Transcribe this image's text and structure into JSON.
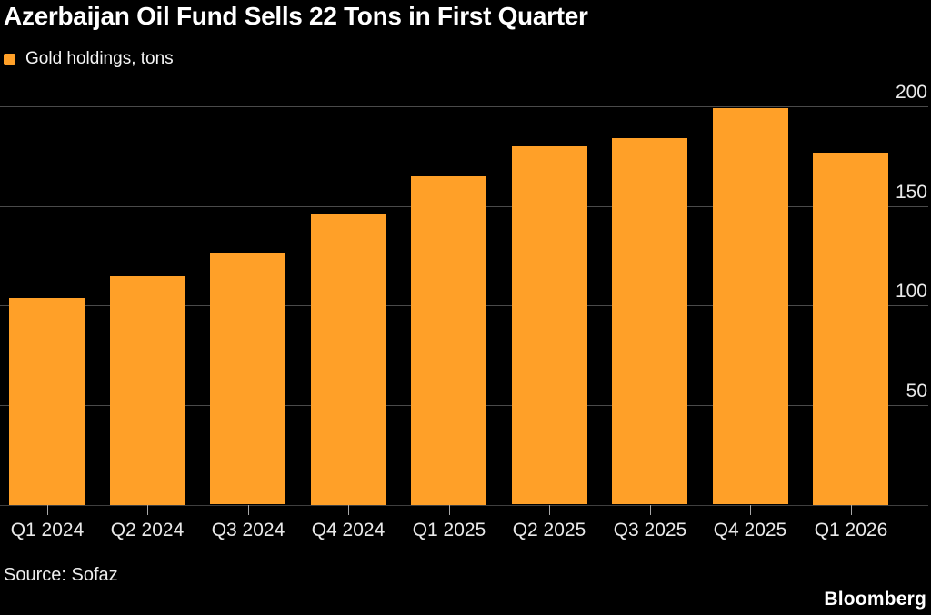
{
  "title": "Azerbaijan Oil Fund Sells 22 Tons in First Quarter",
  "legend": {
    "label": "Gold holdings, tons",
    "swatch_color": "#FFA028"
  },
  "source": "Source: Sofaz",
  "brand": "Bloomberg",
  "colors": {
    "background": "#000000",
    "bar": "#FFA028",
    "gridline": "#4a4a4a",
    "tick": "#a8a8a8",
    "title_text": "#ffffff",
    "axis_text": "#e9e9e9"
  },
  "chart_data": {
    "type": "bar",
    "title": "Azerbaijan Oil Fund Sells 22 Tons in First Quarter",
    "series_name": "Gold holdings, tons",
    "categories": [
      "Q1 2024",
      "Q2 2024",
      "Q3 2024",
      "Q4 2024",
      "Q1 2025",
      "Q2 2025",
      "Q3 2025",
      "Q4 2025",
      "Q1 2026"
    ],
    "values": [
      104,
      115,
      126,
      146,
      165,
      180,
      184,
      199,
      177
    ],
    "xlabel": "",
    "ylabel": "",
    "ylim": [
      0,
      200
    ],
    "yticks": [
      50,
      100,
      150,
      200
    ],
    "ytick_side": "right",
    "grid": "horizontal",
    "legend_position": "top-left"
  }
}
